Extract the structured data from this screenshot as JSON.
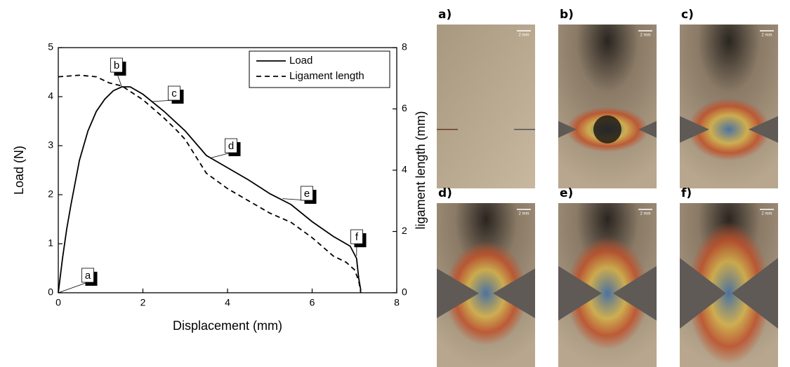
{
  "chart_data": {
    "type": "line",
    "xlabel": "Displacement (mm)",
    "ylabel": "Load (N)",
    "y2label": "ligament length (mm)",
    "xlim": [
      0,
      8
    ],
    "xticks": [
      0,
      2,
      4,
      6,
      8
    ],
    "ylim": [
      0,
      5
    ],
    "yticks": [
      0,
      1,
      2,
      3,
      4,
      5
    ],
    "y2lim": [
      0,
      8
    ],
    "y2ticks": [
      0,
      2,
      4,
      6,
      8
    ],
    "legend": "upper right",
    "series": [
      {
        "name": "Load",
        "color": "#000000",
        "dash": "solid",
        "x": [
          0,
          0.1,
          0.2,
          0.3,
          0.5,
          0.7,
          0.9,
          1.1,
          1.3,
          1.5,
          1.7,
          2.0,
          2.5,
          3.0,
          3.5,
          4.0,
          4.5,
          5.0,
          5.5,
          6.0,
          6.5,
          6.9,
          7.05,
          7.1,
          7.15
        ],
        "values": [
          0,
          0.7,
          1.3,
          1.8,
          2.7,
          3.3,
          3.7,
          3.95,
          4.12,
          4.2,
          4.2,
          4.05,
          3.7,
          3.3,
          2.8,
          2.55,
          2.3,
          2.02,
          1.8,
          1.45,
          1.15,
          0.95,
          0.7,
          0.3,
          0.05
        ]
      },
      {
        "name": "Ligament length",
        "color": "#000000",
        "dash": "dashed",
        "axis": "y2",
        "x": [
          0,
          0.5,
          0.9,
          1.2,
          1.5,
          2.0,
          2.5,
          2.8,
          3.0,
          3.5,
          4.0,
          4.5,
          5.0,
          5.5,
          6.0,
          6.5,
          6.8,
          7.0,
          7.1,
          7.15
        ],
        "values": [
          7.05,
          7.1,
          7.05,
          6.85,
          6.75,
          6.3,
          5.7,
          5.3,
          5.0,
          3.9,
          3.4,
          3.0,
          2.6,
          2.3,
          1.8,
          1.2,
          1.0,
          0.75,
          0.4,
          0
        ]
      }
    ],
    "annotations": [
      {
        "text": "a",
        "x": 0,
        "y": 0
      },
      {
        "text": "b",
        "x": 1.5,
        "y": 4.2
      },
      {
        "text": "c",
        "x": 2.2,
        "y": 3.9
      },
      {
        "text": "d",
        "x": 3.6,
        "y": 2.75
      },
      {
        "text": "e",
        "x": 5.3,
        "y": 1.92
      },
      {
        "text": "f",
        "x": 7.05,
        "y": 0.75
      }
    ]
  },
  "panels": [
    {
      "label": "a)",
      "scale_bar": "2 mm"
    },
    {
      "label": "b)",
      "scale_bar": "2 mm"
    },
    {
      "label": "c)",
      "scale_bar": "2 mm"
    },
    {
      "label": "d)",
      "scale_bar": "2 mm"
    },
    {
      "label": "e)",
      "scale_bar": "2 mm"
    },
    {
      "label": "f)",
      "scale_bar": "2 mm"
    }
  ]
}
